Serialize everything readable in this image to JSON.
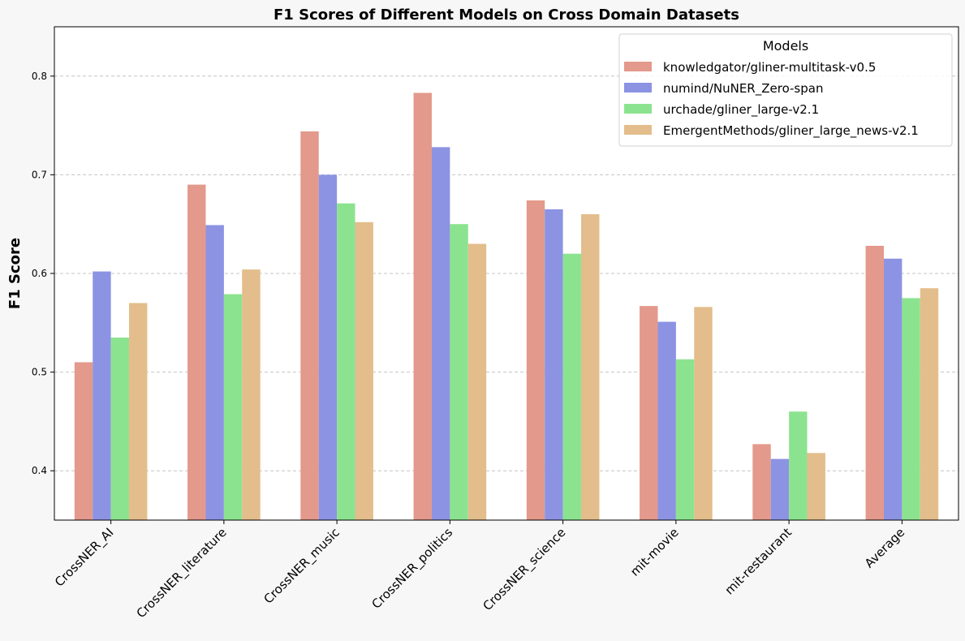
{
  "chart_data": {
    "type": "bar",
    "title": "F1 Scores of Different Models on Cross Domain Datasets",
    "xlabel": "",
    "ylabel": "F1 Score",
    "ylim": [
      0.35,
      0.85
    ],
    "yticks": [
      "0.4",
      "0.5",
      "0.6",
      "0.7",
      "0.8"
    ],
    "grid": "y-dashed",
    "legend": {
      "title": "Models",
      "placement": "top-right"
    },
    "categories": [
      "CrossNER_AI",
      "CrossNER_literature",
      "CrossNER_music",
      "CrossNER_politics",
      "CrossNER_science",
      "mit-movie",
      "mit-restaurant",
      "Average"
    ],
    "series": [
      {
        "name": "knowledgator/gliner-multitask-v0.5",
        "color": "#e3998b",
        "values": [
          0.51,
          0.69,
          0.744,
          0.783,
          0.674,
          0.567,
          0.427,
          0.628
        ]
      },
      {
        "name": "numind/NuNER_Zero-span",
        "color": "#8c93e3",
        "values": [
          0.602,
          0.649,
          0.7,
          0.728,
          0.665,
          0.551,
          0.412,
          0.615
        ]
      },
      {
        "name": "urchade/gliner_large-v2.1",
        "color": "#8ce38f",
        "values": [
          0.535,
          0.579,
          0.671,
          0.65,
          0.62,
          0.513,
          0.46,
          0.575
        ]
      },
      {
        "name": "EmergentMethods/gliner_large_news-v2.1",
        "color": "#e3bd8b",
        "values": [
          0.57,
          0.604,
          0.652,
          0.63,
          0.66,
          0.566,
          0.418,
          0.585
        ]
      }
    ]
  }
}
